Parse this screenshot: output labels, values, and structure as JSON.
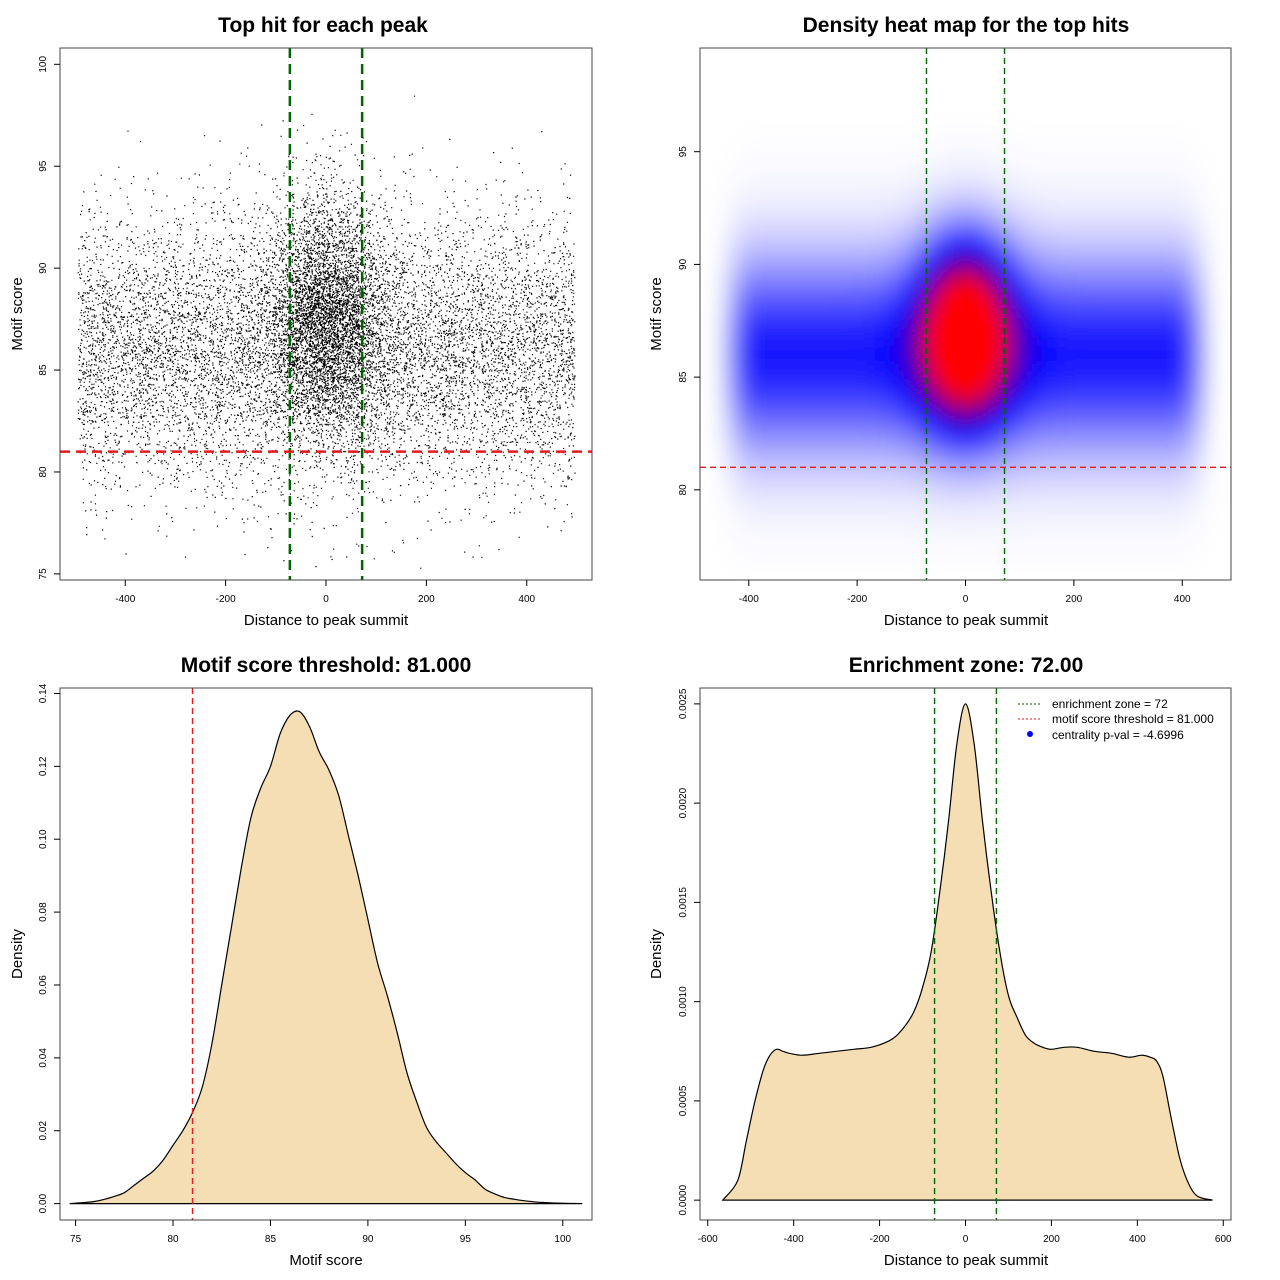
{
  "chart_data": [
    {
      "id": "scatter",
      "type": "scatter",
      "title": "Top hit for each peak",
      "xlabel": "Distance to peak summit",
      "ylabel": "Motif score",
      "xlim": [
        -530,
        530
      ],
      "ylim": [
        74.7,
        100.8
      ],
      "xticks": [
        -400,
        -200,
        0,
        200,
        400
      ],
      "yticks": [
        75,
        80,
        85,
        90,
        95,
        100
      ],
      "point_count": 14000,
      "point_model": {
        "x_range": [
          -495,
          495
        ],
        "central_fraction": 0.33,
        "central_x_sd": 60,
        "central_y_mean": 87.5,
        "central_y_sd": 3.0,
        "background_y_mean": 86.0,
        "background_y_sd": 3.3
      },
      "hlines": [
        {
          "value": 81.0,
          "color": "#e41a1c",
          "style": "dashed"
        }
      ],
      "vlines": [
        {
          "value": -72,
          "color": "#006400",
          "style": "dashed"
        },
        {
          "value": 72,
          "color": "#006400",
          "style": "dashed"
        }
      ]
    },
    {
      "id": "heatmap",
      "type": "heatmap",
      "title": "Density heat map for the top hits",
      "xlabel": "Distance to peak summit",
      "ylabel": "Motif score",
      "xlim": [
        -490,
        490
      ],
      "ylim": [
        76.0,
        99.6
      ],
      "xticks": [
        -400,
        -200,
        0,
        200,
        400
      ],
      "yticks": [
        80,
        85,
        90,
        95
      ],
      "density_model": {
        "peak_x": 0,
        "peak_y": 87.0,
        "peak_x_sd": 55,
        "peak_y_sd": 2.6,
        "band_y_mean": 86.0,
        "band_y_sd": 3.0
      },
      "color_scale": [
        "#ffffff",
        "#0000ff",
        "#ff0000"
      ],
      "hlines": [
        {
          "value": 81.0,
          "color": "#e41a1c",
          "style": "dashed"
        }
      ],
      "vlines": [
        {
          "value": -72,
          "color": "#006400",
          "style": "dashed"
        },
        {
          "value": 72,
          "color": "#006400",
          "style": "dashed"
        }
      ]
    },
    {
      "id": "score-density",
      "type": "area",
      "title": "Motif score threshold: 81.000",
      "xlabel": "Motif score",
      "ylabel": "Density",
      "xlim": [
        74.2,
        101.5
      ],
      "ylim": [
        -0.0045,
        0.1415
      ],
      "xticks": [
        75,
        80,
        85,
        90,
        95,
        100
      ],
      "yticks": [
        0.0,
        0.02,
        0.04,
        0.06,
        0.08,
        0.1,
        0.12,
        0.14
      ],
      "ytick_labels": [
        "0.00",
        "0.02",
        "0.04",
        "0.06",
        "0.08",
        "0.10",
        "0.12",
        "0.14"
      ],
      "fill_color": "#f5deb3",
      "x": [
        74.7,
        75.5,
        76.0,
        76.5,
        77.0,
        77.5,
        78.0,
        78.5,
        79.0,
        79.5,
        80.0,
        80.5,
        81.0,
        81.5,
        82.0,
        82.5,
        83.0,
        83.5,
        84.0,
        84.5,
        85.0,
        85.5,
        86.0,
        86.5,
        87.0,
        87.5,
        88.0,
        88.5,
        89.0,
        89.5,
        90.0,
        90.5,
        91.0,
        91.5,
        92.0,
        92.5,
        93.0,
        93.5,
        94.0,
        94.5,
        95.0,
        95.5,
        96.0,
        96.5,
        97.0,
        97.5,
        98.0,
        98.5,
        99.0,
        100.0,
        101.0
      ],
      "y": [
        0.0,
        0.0003,
        0.0006,
        0.0012,
        0.002,
        0.003,
        0.005,
        0.007,
        0.009,
        0.012,
        0.016,
        0.02,
        0.025,
        0.032,
        0.044,
        0.06,
        0.076,
        0.092,
        0.106,
        0.114,
        0.12,
        0.129,
        0.134,
        0.135,
        0.131,
        0.124,
        0.119,
        0.112,
        0.101,
        0.09,
        0.078,
        0.066,
        0.057,
        0.047,
        0.036,
        0.028,
        0.021,
        0.017,
        0.014,
        0.011,
        0.0085,
        0.0065,
        0.004,
        0.0027,
        0.0017,
        0.0012,
        0.0008,
        0.0005,
        0.0003,
        0.0001,
        0.0
      ],
      "vlines": [
        {
          "value": 81.0,
          "color": "#e41a1c",
          "style": "dashed"
        }
      ]
    },
    {
      "id": "distance-density",
      "type": "area",
      "title": "Enrichment zone: 72.00",
      "xlabel": "Distance to peak summit",
      "ylabel": "Density",
      "xlim": [
        -618,
        618
      ],
      "ylim": [
        -0.0001,
        0.00258
      ],
      "xticks": [
        -600,
        -400,
        -200,
        0,
        200,
        400,
        600
      ],
      "yticks": [
        0.0,
        0.0005,
        0.001,
        0.0015,
        0.002,
        0.0025
      ],
      "ytick_labels": [
        "0.0000",
        "0.0005",
        "0.0010",
        "0.0015",
        "0.0020",
        "0.0025"
      ],
      "fill_color": "#f5deb3",
      "x": [
        -565,
        -530,
        -510,
        -490,
        -470,
        -455,
        -440,
        -425,
        -410,
        -380,
        -340,
        -300,
        -260,
        -220,
        -180,
        -160,
        -140,
        -120,
        -100,
        -80,
        -60,
        -40,
        -20,
        0,
        20,
        40,
        60,
        80,
        100,
        120,
        140,
        160,
        180,
        200,
        230,
        260,
        300,
        340,
        380,
        410,
        430,
        445,
        460,
        480,
        500,
        520,
        540,
        575
      ],
      "y": [
        0.0,
        0.0001,
        0.0003,
        0.0005,
        0.00066,
        0.00073,
        0.00076,
        0.00075,
        0.00074,
        0.00073,
        0.00074,
        0.00075,
        0.00076,
        0.00077,
        0.0008,
        0.00083,
        0.00088,
        0.00095,
        0.00107,
        0.00125,
        0.00155,
        0.0019,
        0.0023,
        0.0025,
        0.0023,
        0.0019,
        0.00155,
        0.00125,
        0.00103,
        0.00092,
        0.00083,
        0.00079,
        0.00077,
        0.00076,
        0.00077,
        0.00077,
        0.00075,
        0.00074,
        0.00072,
        0.00073,
        0.00072,
        0.0007,
        0.00062,
        0.0004,
        0.0002,
        8e-05,
        2e-05,
        0.0
      ],
      "vlines": [
        {
          "value": -72,
          "color": "#006400",
          "style": "dashed"
        },
        {
          "value": 72,
          "color": "#006400",
          "style": "dashed"
        }
      ],
      "legend": {
        "position": "top-right",
        "entries": [
          {
            "label": "enrichment zone = 72",
            "color": "#006400",
            "marker": "dotted-line"
          },
          {
            "label": "motif score threshold = 81.000",
            "color": "#e41a1c",
            "marker": "dotted-line"
          },
          {
            "label": "centrality p-val = -4.6996",
            "color": "#0000ff",
            "marker": "point"
          }
        ]
      }
    }
  ]
}
